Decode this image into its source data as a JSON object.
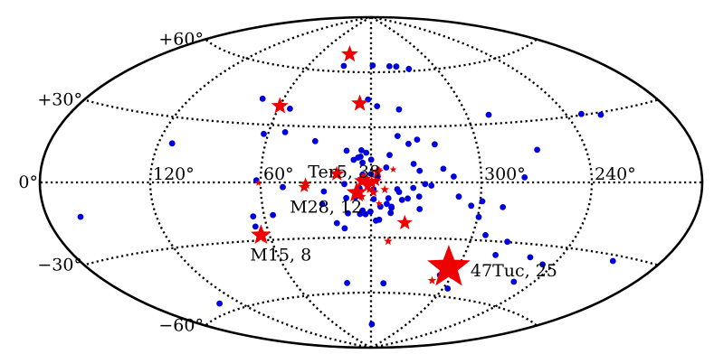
{
  "chart_data": {
    "type": "scatter",
    "projection": "aitoff-galactic",
    "title": "",
    "xlabel": "",
    "ylabel": "",
    "grid": true,
    "longitude_labels": [
      {
        "lon": 60,
        "text": "60°"
      },
      {
        "lon": 120,
        "text": "120°"
      },
      {
        "lon": -60,
        "text": "300°"
      },
      {
        "lon": -120,
        "text": "240°"
      }
    ],
    "latitude_labels": [
      {
        "lat": 60,
        "text": "+60°"
      },
      {
        "lat": 30,
        "text": "+30°"
      },
      {
        "lat": 0,
        "text": "0°"
      },
      {
        "lat": -30,
        "text": "−30°"
      },
      {
        "lat": -60,
        "text": "−60°"
      }
    ],
    "colors": {
      "dots": "#0000dd",
      "stars": "#ee0000",
      "grid": "#000000"
    },
    "annotations": [
      {
        "text": "Ter5, 38",
        "lon": 3.8,
        "lat": 1.7
      },
      {
        "text": "M28, 12",
        "lon": 7.8,
        "lat": -5.6
      },
      {
        "text": "M15, 8",
        "lon": 65.0,
        "lat": -27.3
      },
      {
        "text": "47Tuc, 25",
        "lon": 305.9,
        "lat": -44.9
      }
    ],
    "series": [
      {
        "marker": "dot",
        "points": [
          [
            26.6,
            63.1
          ],
          [
            -1.6,
            63.7
          ],
          [
            -17.9,
            63.1
          ],
          [
            -24.4,
            62.8
          ],
          [
            -35.2,
            61.2
          ],
          [
            74.1,
            43.0
          ],
          [
            52.6,
            38.9
          ],
          [
            2.1,
            45.2
          ],
          [
            -4.0,
            41.5
          ],
          [
            -18.2,
            39.6
          ],
          [
            -73.6,
            34.6
          ],
          [
            -129.0,
            30.5
          ],
          [
            -139.8,
            29.0
          ],
          [
            62.5,
            25.2
          ],
          [
            50.4,
            26.5
          ],
          [
            32.0,
            22.2
          ],
          [
            -15.4,
            25.2
          ],
          [
            -26.5,
            23.1
          ],
          [
            -21.3,
            20.9
          ],
          [
            -36.2,
            20.4
          ],
          [
            -92.9,
            15.9
          ],
          [
            112.4,
            18.1
          ],
          [
            13.7,
            17.2
          ],
          [
            5.4,
            17.5
          ],
          [
            2.7,
            16.2
          ],
          [
            -10.3,
            14.9
          ],
          [
            5.8,
            14.0
          ],
          [
            7.2,
            13.5
          ],
          [
            9.6,
            12.3
          ],
          [
            -0.1,
            12.4
          ],
          [
            4.7,
            10.7
          ],
          [
            -23.4,
            10.0
          ],
          [
            -39.5,
            7.3
          ],
          [
            -26.5,
            6.3
          ],
          [
            -45.0,
            3.1
          ],
          [
            -83.5,
            2.5
          ],
          [
            62.3,
            1.1
          ],
          [
            -23.0,
            -3.0
          ],
          [
            48.0,
            -2.5
          ],
          [
            25.7,
            -4.9
          ],
          [
            -15.3,
            -5.2
          ],
          [
            -29.4,
            -0.9
          ],
          [
            -32.8,
            -1.7
          ],
          [
            -26.3,
            -7.6
          ],
          [
            -48.0,
            -7.5
          ],
          [
            -61.1,
            -9.8
          ],
          [
            -55.3,
            -12.2
          ],
          [
            -72.9,
            -12.6
          ],
          [
            26.9,
            -11.7
          ],
          [
            -20.1,
            -8.7
          ],
          [
            -8.7,
            -11.7
          ],
          [
            -11.4,
            -13.8
          ],
          [
            -27.0,
            -14.4
          ],
          [
            -60.6,
            -18.0
          ],
          [
            6.2,
            -17.2
          ],
          [
            3.1,
            -17.3
          ],
          [
            12.9,
            -16.8
          ],
          [
            -11.0,
            -16.6
          ],
          [
            -2.8,
            -20.8
          ],
          [
            -4.6,
            -20.3
          ],
          [
            19.5,
            -22.1
          ],
          [
            15.3,
            -24.9
          ],
          [
            66.2,
            -17.5
          ],
          [
            55.0,
            -17.1
          ],
          [
            66.5,
            -22.8
          ],
          [
            -67.6,
            -27.2
          ],
          [
            -82.1,
            -29.8
          ],
          [
            -79.6,
            -36.8
          ],
          [
            -101.9,
            -36.2
          ],
          [
            -113.3,
            -38.7
          ],
          [
            -152.5,
            -32.3
          ],
          [
            -106.7,
            -48.2
          ],
          [
            -63.8,
            -55.7
          ],
          [
            -50.9,
            -49.2
          ],
          [
            19.2,
            -54.6
          ],
          [
            -10.0,
            -54.9
          ],
          [
            135.4,
            -56.0
          ],
          [
            -1.5,
            -77.2
          ],
          [
            4.7,
            -15.3
          ],
          [
            0.3,
            -15.9
          ],
          [
            -5.2,
            -13.2
          ],
          [
            -11.3,
            -13.2
          ],
          [
            -9.5,
            -8.6
          ],
          [
            -14.3,
            -3.7
          ],
          [
            -17.0,
            -9.5
          ],
          [
            14.5,
            -0.9
          ],
          [
            13.6,
            -8.5
          ],
          [
            8.6,
            -8.3
          ],
          [
            2.9,
            1.1
          ],
          [
            -3.6,
            3.1
          ],
          [
            -1.4,
            -3.7
          ],
          [
            1.3,
            0.1
          ],
          [
            6.2,
            -3.2
          ],
          [
            -1.5,
            -9.1
          ],
          [
            4.6,
            4.3
          ],
          [
            0.0,
            4.6
          ],
          [
            -8.3,
            8.1
          ],
          [
            161.8,
            -13.2
          ]
        ]
      },
      {
        "marker": "star",
        "points": [
          [
            4.8,
            0.8,
            9.5
          ],
          [
            3.8,
            1.7,
            8
          ],
          [
            1.8,
            0.5,
            7
          ],
          [
            -2.5,
            0.8,
            7
          ],
          [
            -0.4,
            0.3,
            6.5
          ],
          [
            7.8,
            -5.6,
            12
          ],
          [
            -0.6,
            -0.7,
            6
          ],
          [
            2.0,
            -2.1,
            6
          ],
          [
            -1.3,
            -5.4,
            6
          ],
          [
            -3.5,
            5.8,
            7
          ],
          [
            0.9,
            -3.9,
            5
          ],
          [
            5.0,
            -7.7,
            5
          ],
          [
            -7.5,
            -3.9,
            5
          ],
          [
            -12.1,
            7.0,
            4
          ],
          [
            -4.4,
            -11.5,
            4
          ],
          [
            18.6,
            4.6,
            9
          ],
          [
            -19.3,
            -21.9,
            9
          ],
          [
            -10.4,
            -32.0,
            5
          ],
          [
            65.0,
            -27.3,
            12
          ],
          [
            305.9,
            -44.9,
            25
          ],
          [
            61.2,
            -0.3,
            4
          ],
          [
            36.3,
            -2.5,
            7
          ],
          [
            35.6,
            -0.7,
            7
          ],
          [
            59.9,
            40.0,
            10
          ],
          [
            25.7,
            69.5,
            10
          ],
          [
            7.6,
            43.0,
            10
          ],
          [
            -47.4,
            -52.3,
            5
          ],
          [
            -4.4,
            7.0,
            4
          ]
        ]
      }
    ]
  }
}
